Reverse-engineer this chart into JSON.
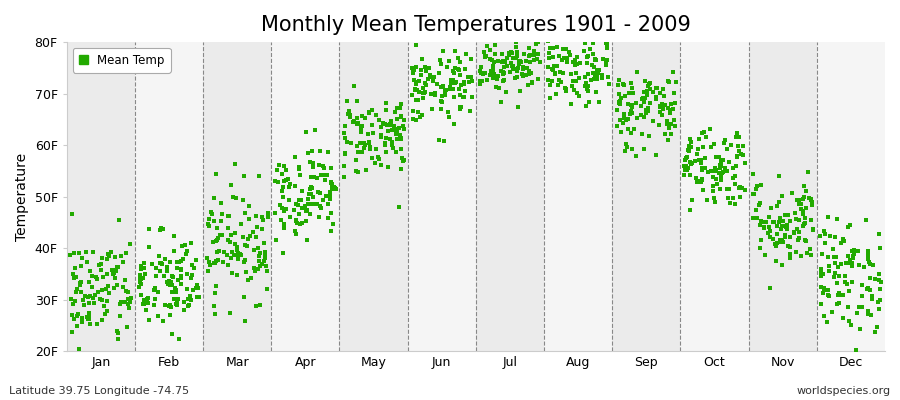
{
  "title": "Monthly Mean Temperatures 1901 - 2009",
  "ylabel": "Temperature",
  "xlabel": "",
  "bottom_left_text": "Latitude 39.75 Longitude -74.75",
  "bottom_right_text": "worldspecies.org",
  "legend_label": "Mean Temp",
  "ylim": [
    20,
    80
  ],
  "ytick_labels": [
    "20F",
    "30F",
    "40F",
    "50F",
    "60F",
    "70F",
    "80F"
  ],
  "ytick_values": [
    20,
    30,
    40,
    50,
    60,
    70,
    80
  ],
  "months": [
    "Jan",
    "Feb",
    "Mar",
    "Apr",
    "May",
    "Jun",
    "Jul",
    "Aug",
    "Sep",
    "Oct",
    "Nov",
    "Dec"
  ],
  "mean_temps": [
    31.5,
    33.0,
    41.0,
    51.0,
    62.0,
    71.0,
    76.0,
    74.5,
    67.0,
    56.0,
    45.0,
    34.5
  ],
  "std_temps": [
    5.5,
    5.0,
    5.5,
    4.5,
    4.0,
    3.5,
    3.0,
    3.5,
    4.0,
    4.0,
    4.5,
    5.5
  ],
  "dot_color": "#22aa00",
  "background_color": "#ffffff",
  "band_color_even": "#ebebeb",
  "band_color_odd": "#f5f5f5",
  "years": 109,
  "seed": 42,
  "title_fontsize": 15,
  "label_fontsize": 10,
  "tick_fontsize": 9,
  "dot_size": 9
}
